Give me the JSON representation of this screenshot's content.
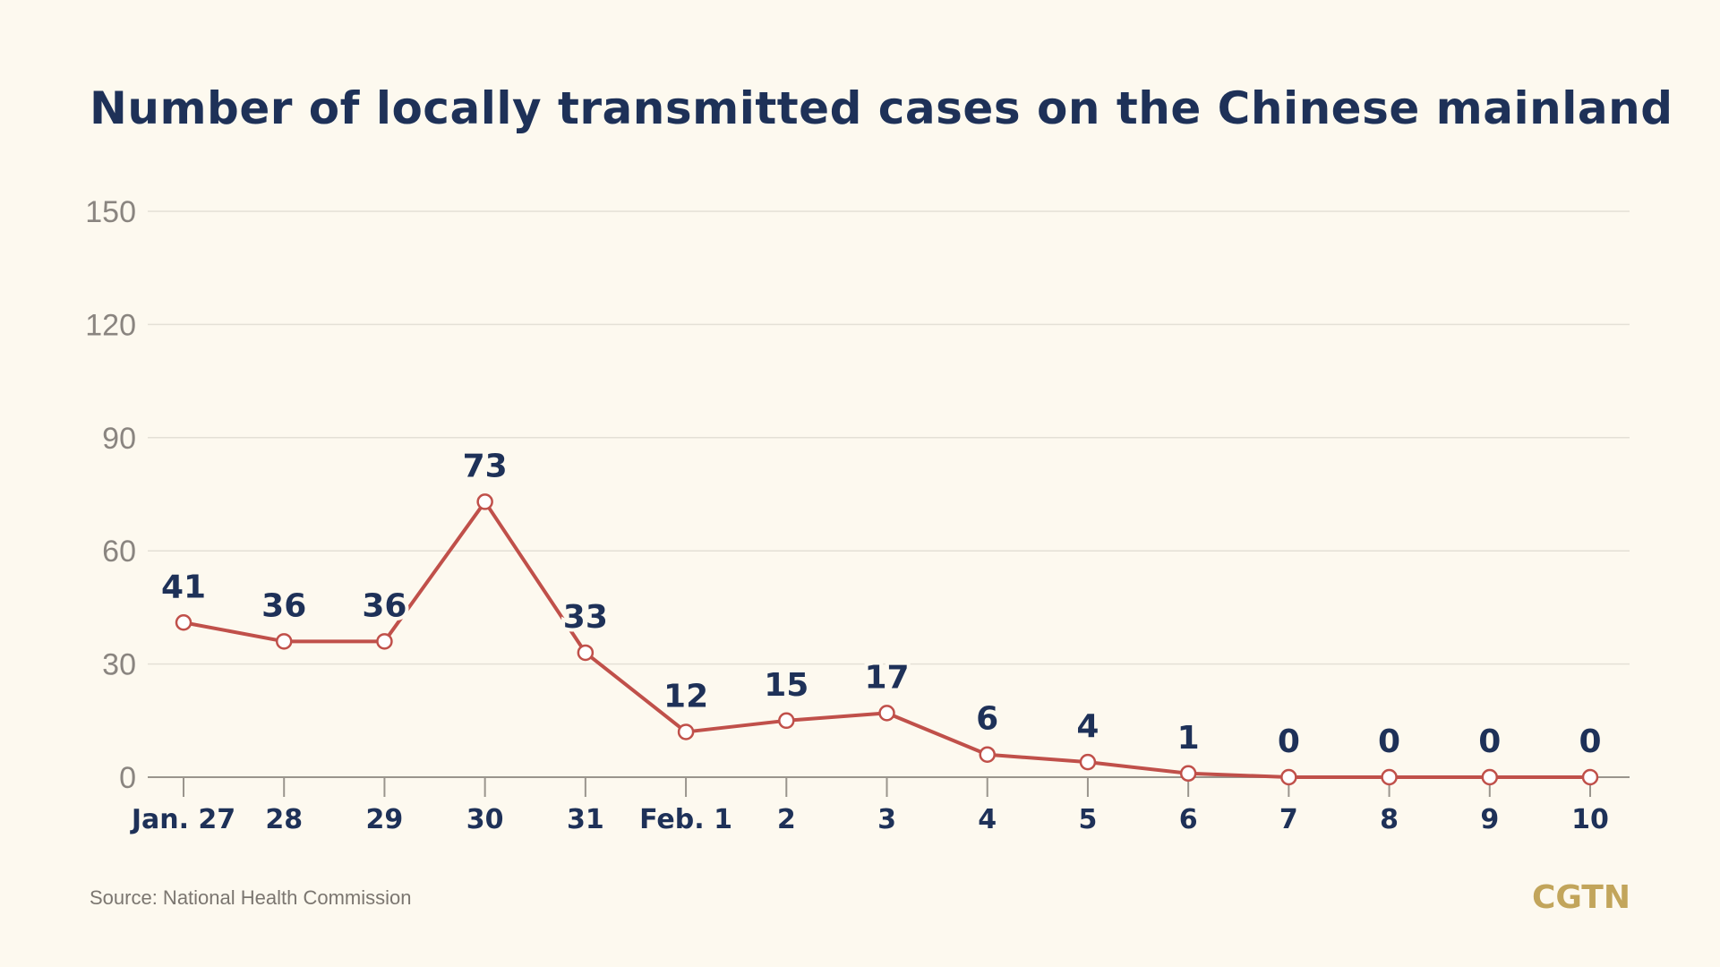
{
  "chart_data": {
    "type": "line",
    "title": "Number of locally transmitted cases on the Chinese mainland",
    "categories": [
      "Jan. 27",
      "28",
      "29",
      "30",
      "31",
      "Feb. 1",
      "2",
      "3",
      "4",
      "5",
      "6",
      "7",
      "8",
      "9",
      "10"
    ],
    "series": [
      {
        "values": [
          41,
          36,
          36,
          73,
          33,
          12,
          15,
          17,
          6,
          4,
          1,
          0,
          0,
          0,
          0
        ],
        "color": "#c0504a"
      }
    ],
    "yticks": [
      "0",
      "30",
      "60",
      "90",
      "120",
      "150"
    ],
    "ylim": [
      0,
      150
    ],
    "grid": true,
    "xlabel": "",
    "ylabel": ""
  },
  "source": "Source: National Health Commission",
  "logo": "CGTN",
  "colors": {
    "background": "#fdf9ef",
    "title": "#1e3158",
    "line": "#c0504a",
    "grid": "#e4e0d6",
    "logo": "#c2a55b"
  }
}
